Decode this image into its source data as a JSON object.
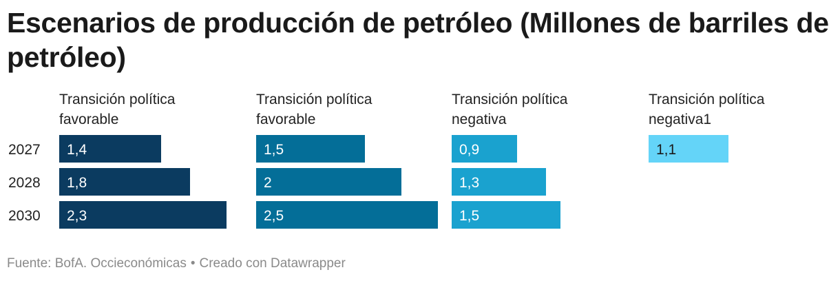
{
  "chart_data": {
    "type": "bar",
    "orientation": "horizontal",
    "title": "Escenarios de producción de petróleo (Millones de barriles de petróleo)",
    "categories": [
      "2027",
      "2028",
      "2030"
    ],
    "series": [
      {
        "name": "Transición política favorable",
        "color": "#0b3b60",
        "values": [
          1.4,
          1.8,
          2.3
        ],
        "labels": [
          "1,4",
          "1,8",
          "2,3"
        ]
      },
      {
        "name": "Transición política favorable",
        "color": "#046e98",
        "values": [
          1.5,
          2,
          2.5
        ],
        "labels": [
          "1,5",
          "2",
          "2,5"
        ]
      },
      {
        "name": "Transición política negativa",
        "color": "#1aa2cf",
        "values": [
          0.9,
          1.3,
          1.5
        ],
        "labels": [
          "0,9",
          "1,3",
          "1,5"
        ]
      },
      {
        "name": "Transición política negativa1",
        "color": "#64d4f8",
        "values": [
          1.1,
          null,
          null
        ],
        "labels": [
          "1,1",
          null,
          null
        ]
      }
    ],
    "xlim": [
      0,
      2.5
    ],
    "source": "Fuente: BofA. Occieconómicas",
    "credit": "Creado con Datawrapper"
  }
}
